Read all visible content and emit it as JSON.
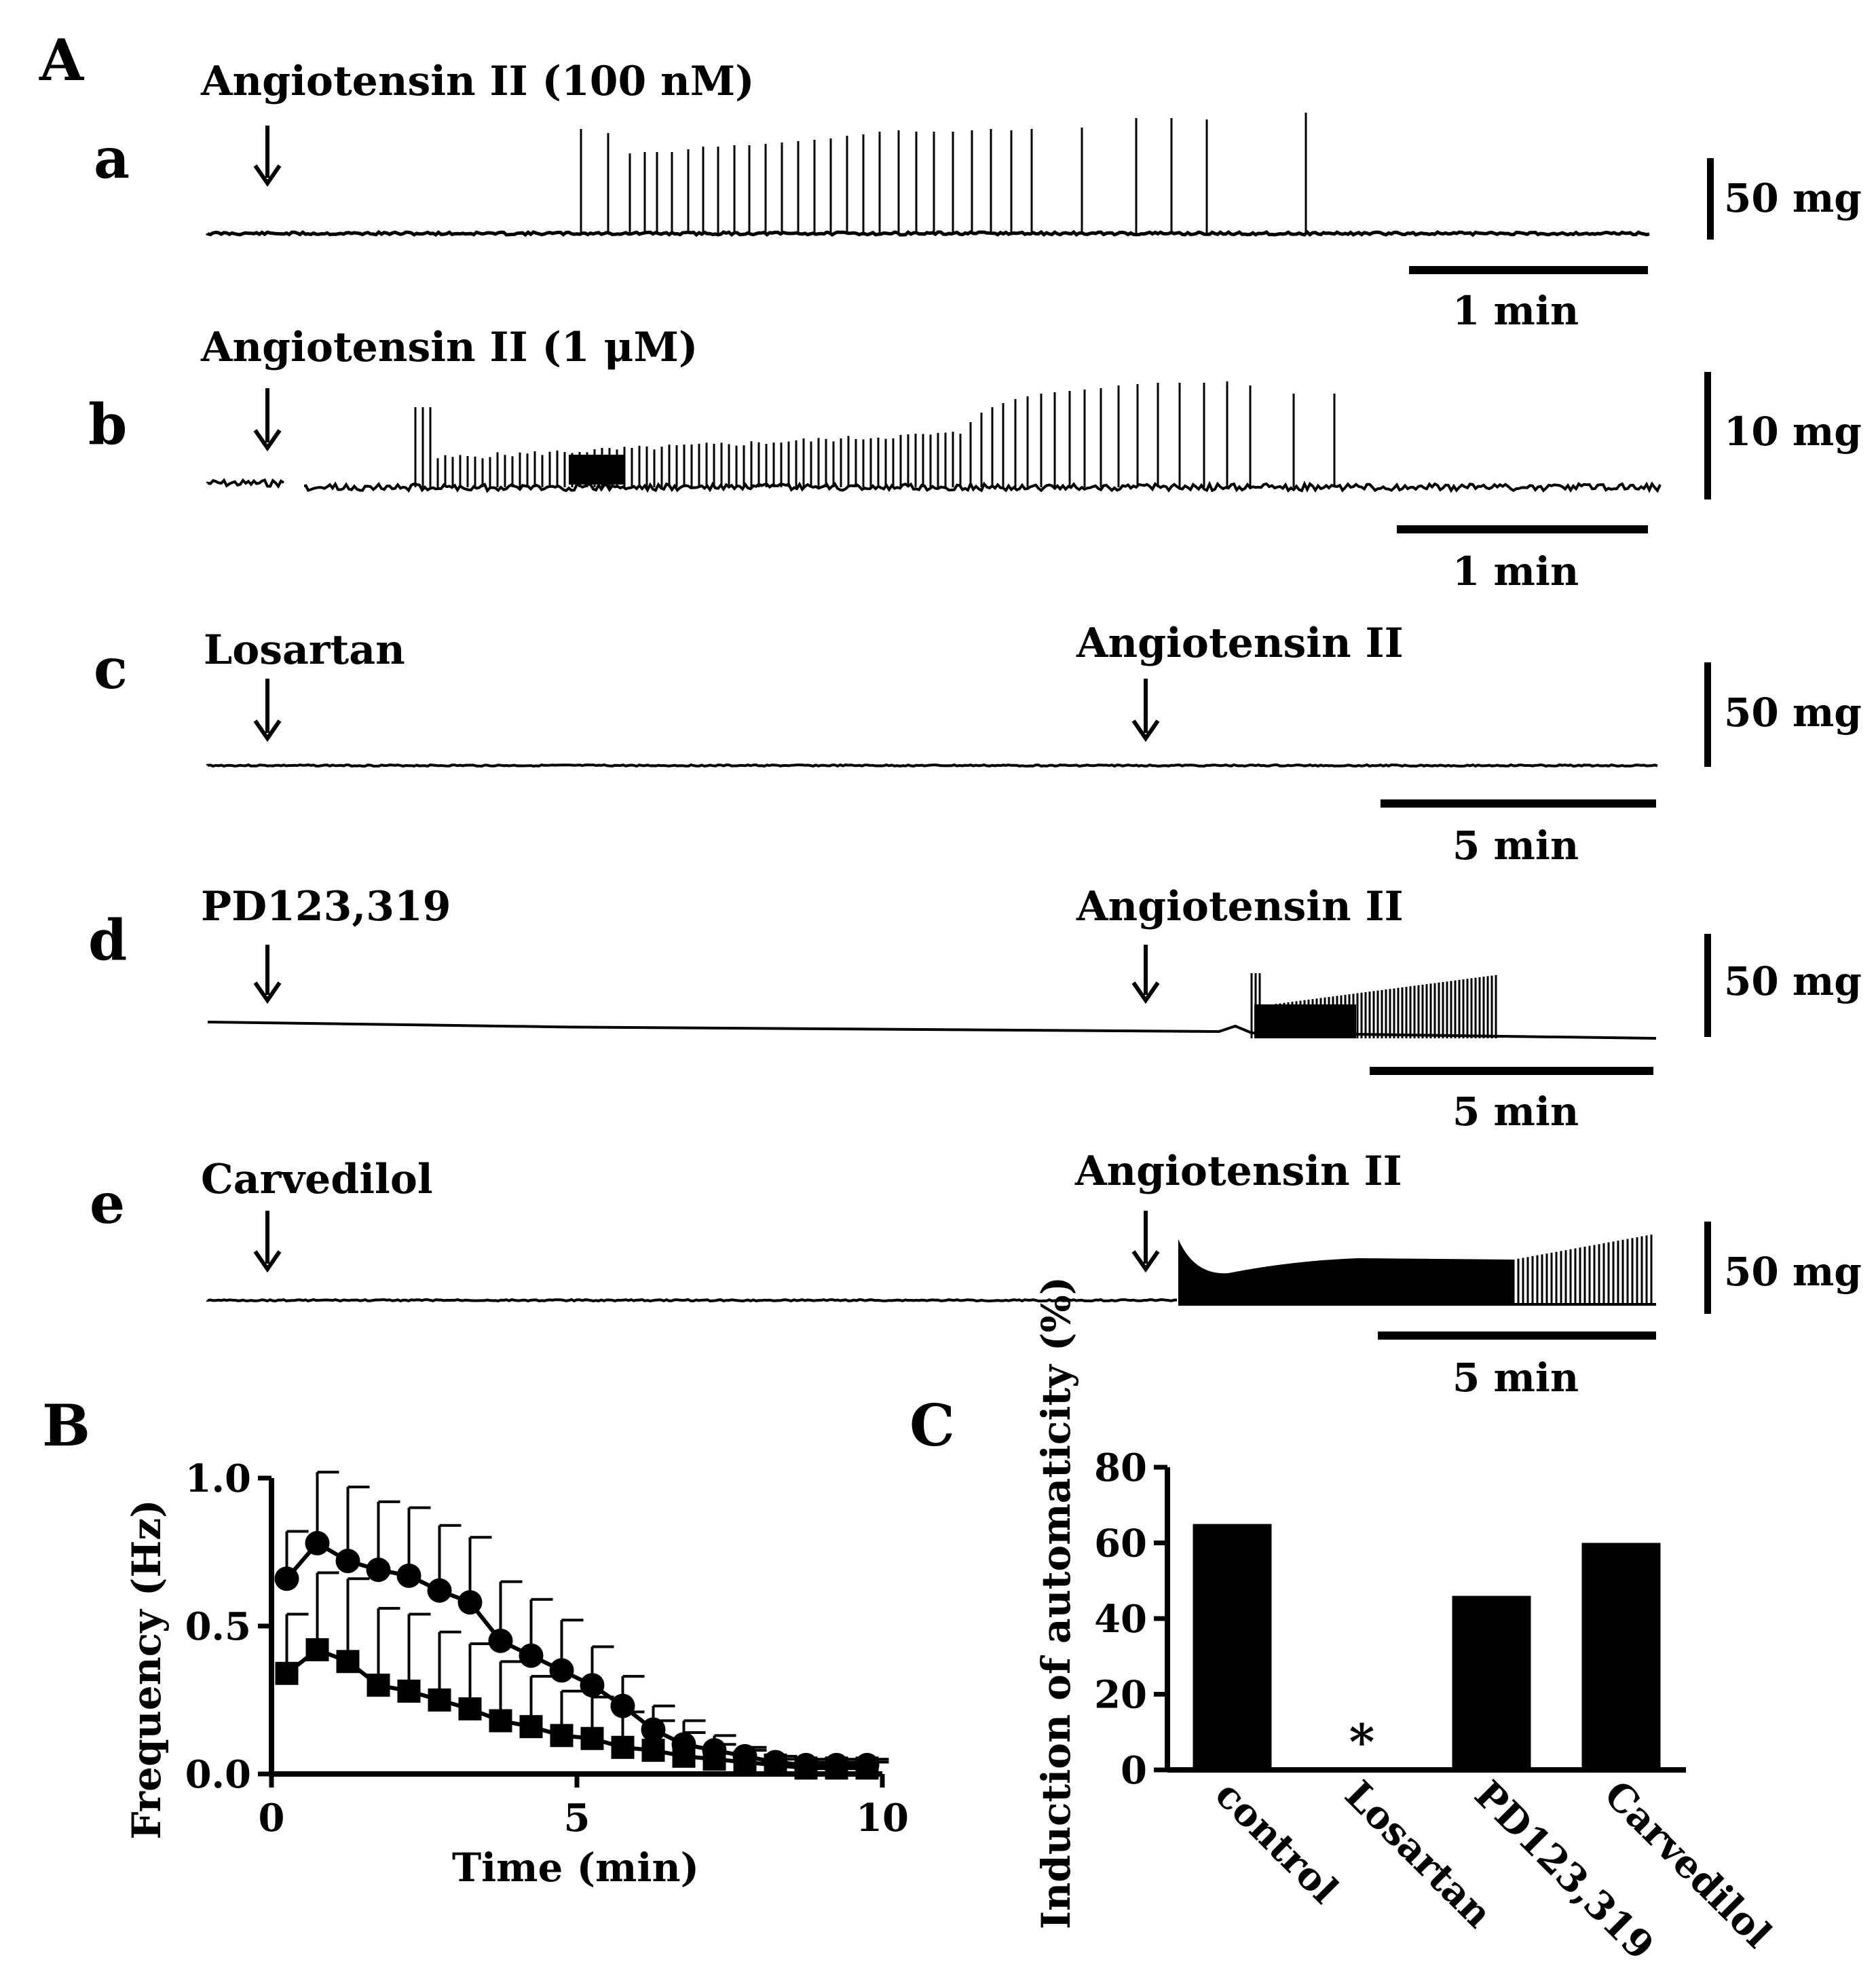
{
  "panel_A": {
    "letter": "A",
    "rows": [
      {
        "letter": "a",
        "drugs": [
          "Angiotensin II (100 nM)"
        ],
        "force_scale": "50 mg",
        "time_scale": "1 min"
      },
      {
        "letter": "b",
        "drugs": [
          "Angiotensin II (1 μM)"
        ],
        "force_scale": "10 mg",
        "time_scale": "1 min"
      },
      {
        "letter": "c",
        "drugs": [
          "Losartan",
          "Angiotensin II"
        ],
        "force_scale": "50 mg",
        "time_scale": "5 min"
      },
      {
        "letter": "d",
        "drugs": [
          "PD123,319",
          "Angiotensin II"
        ],
        "force_scale": "50 mg",
        "time_scale": "5 min"
      },
      {
        "letter": "e",
        "drugs": [
          "Carvedilol",
          "Angiotensin II"
        ],
        "force_scale": "50 mg",
        "time_scale": "5 min"
      }
    ]
  },
  "chart_data": [
    {
      "panel": "B",
      "type": "line",
      "xlabel": "Time (min)",
      "ylabel": "Frequency (Hz)",
      "xlim": [
        0,
        10
      ],
      "ylim": [
        0,
        1.0
      ],
      "xticks": [
        "0",
        "5",
        "10"
      ],
      "yticks": [
        "0.0",
        "0.5",
        "1.0"
      ],
      "x": [
        0.25,
        0.75,
        1.25,
        1.75,
        2.25,
        2.75,
        3.25,
        3.75,
        4.25,
        4.75,
        5.25,
        5.75,
        6.25,
        6.75,
        7.25,
        7.75,
        8.25,
        8.75,
        9.25,
        9.75
      ],
      "series": [
        {
          "name": "circles",
          "marker": "circle",
          "values": [
            0.66,
            0.78,
            0.72,
            0.69,
            0.67,
            0.62,
            0.58,
            0.45,
            0.4,
            0.35,
            0.3,
            0.23,
            0.15,
            0.1,
            0.08,
            0.06,
            0.04,
            0.03,
            0.03,
            0.03
          ],
          "errors": [
            0.16,
            0.24,
            0.25,
            0.23,
            0.23,
            0.22,
            0.22,
            0.2,
            0.19,
            0.17,
            0.13,
            0.1,
            0.08,
            0.08,
            0.05,
            0.03,
            0.02,
            0.02,
            0.02,
            0.02
          ]
        },
        {
          "name": "squares",
          "marker": "square",
          "values": [
            0.34,
            0.42,
            0.38,
            0.3,
            0.28,
            0.25,
            0.22,
            0.18,
            0.16,
            0.13,
            0.12,
            0.09,
            0.08,
            0.06,
            0.05,
            0.04,
            0.03,
            0.02,
            0.02,
            0.02
          ],
          "errors": [
            0.2,
            0.26,
            0.28,
            0.26,
            0.26,
            0.23,
            0.22,
            0.2,
            0.17,
            0.15,
            0.14,
            0.12,
            0.1,
            0.08,
            0.05,
            0.04,
            0.02,
            0.02,
            0.02,
            0.02
          ]
        }
      ]
    },
    {
      "panel": "C",
      "type": "bar",
      "ylabel": "Induction of automaticity (%)",
      "ylim": [
        0,
        80
      ],
      "yticks": [
        "0",
        "20",
        "40",
        "60",
        "80"
      ],
      "categories": [
        "control",
        "Losartan",
        "PD123,319",
        "Carvedilol"
      ],
      "values": [
        65,
        0,
        46,
        60
      ],
      "annotations": [
        {
          "category": "Losartan",
          "text": "*"
        }
      ]
    }
  ]
}
